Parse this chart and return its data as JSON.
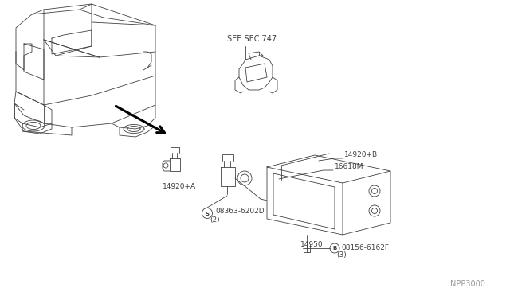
{
  "bg_color": "#ffffff",
  "line_color": "#404040",
  "fig_width": 6.4,
  "fig_height": 3.72,
  "dpi": 100,
  "watermark": "NPP3000",
  "labels": {
    "see_sec": "SEE SEC.747",
    "part_14920A": "14920+A",
    "part_14920B": "14920+B",
    "part_16618M": "16618M",
    "part_S": "S 08363-6202D",
    "part_S_qty": "(2)",
    "part_14950": "14950",
    "part_B": "B 08156-6162F",
    "part_B_qty": "(3)"
  }
}
